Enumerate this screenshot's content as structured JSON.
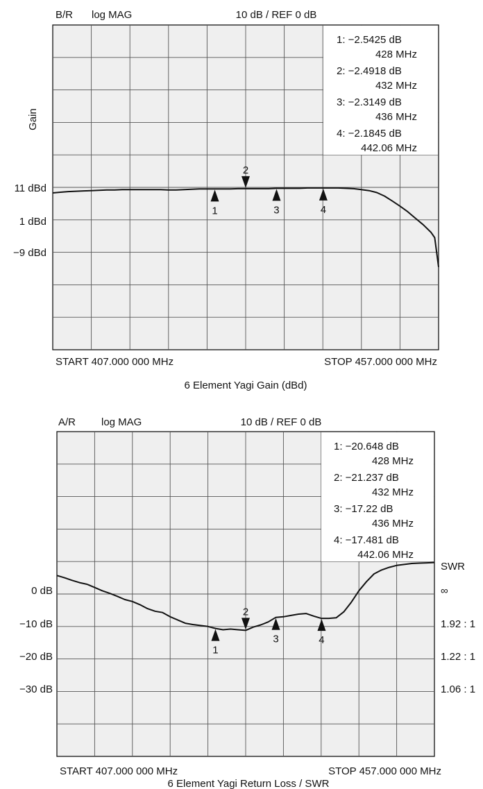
{
  "chart_data": [
    {
      "type": "line",
      "channel": "B/R",
      "format": "log MAG",
      "scale": "10 dB / REF 0 dB",
      "left_ticks": [
        "11 dBd",
        "1 dBd",
        "−9 dBd"
      ],
      "ylabel": "Gain",
      "start_label": "START 407.000 000 MHz",
      "stop_label": "STOP 457.000 000 MHz",
      "caption": "6 Element Yagi Gain (dBd)",
      "xlim": [
        407,
        457
      ],
      "grid": true,
      "x": [
        407,
        408,
        409,
        410,
        411,
        412,
        413,
        414,
        415,
        416,
        417,
        418,
        419,
        420,
        421,
        422,
        423,
        424,
        425,
        426,
        427,
        428,
        429,
        430,
        431,
        432,
        433,
        434,
        435,
        436,
        437,
        438,
        439,
        440,
        441,
        442,
        443,
        444,
        445,
        446,
        447,
        448,
        449,
        450,
        451,
        452,
        453,
        454,
        455,
        456,
        456.5,
        457
      ],
      "y": [
        9.3,
        9.5,
        9.7,
        9.8,
        9.9,
        10.0,
        10.1,
        10.2,
        10.2,
        10.3,
        10.3,
        10.3,
        10.3,
        10.3,
        10.3,
        10.2,
        10.2,
        10.3,
        10.4,
        10.5,
        10.5,
        10.5,
        10.5,
        10.5,
        10.6,
        10.6,
        10.6,
        10.6,
        10.6,
        10.7,
        10.7,
        10.7,
        10.7,
        10.8,
        10.8,
        10.8,
        10.8,
        10.8,
        10.7,
        10.6,
        10.3,
        10.0,
        9.4,
        8.3,
        6.8,
        5.2,
        3.5,
        1.5,
        -0.5,
        -2.8,
        -4.5,
        -13.5
      ],
      "markers": [
        {
          "id": "1",
          "readout": "−2.5425 dB",
          "freq": "428 MHz",
          "x": 428,
          "dir": "up"
        },
        {
          "id": "2",
          "readout": "−2.4918 dB",
          "freq": "432 MHz",
          "x": 432,
          "dir": "down"
        },
        {
          "id": "3",
          "readout": "−2.3149 dB",
          "freq": "436 MHz",
          "x": 436,
          "dir": "up"
        },
        {
          "id": "4",
          "readout": "−2.1845 dB",
          "freq": "442.06 MHz",
          "x": 442.06,
          "dir": "up"
        }
      ]
    },
    {
      "type": "line",
      "channel": "A/R",
      "format": "log MAG",
      "scale": "10 dB / REF 0 dB",
      "left_ticks": [
        "0 dB",
        "−10 dB",
        "−20 dB",
        "−30 dB"
      ],
      "right_title": "SWR",
      "right_ticks": [
        "∞",
        "1.92 : 1",
        "1.22 : 1",
        "1.06 : 1"
      ],
      "start_label": "START 407.000 000 MHz",
      "stop_label": "STOP 457.000 000 MHz",
      "caption": "6 Element Yagi Return Loss / SWR",
      "xlim": [
        407,
        457
      ],
      "ylim": [
        -60,
        40
      ],
      "grid": true,
      "x": [
        407,
        408,
        409,
        410,
        411,
        412,
        413,
        414,
        415,
        416,
        417,
        418,
        419,
        420,
        421,
        422,
        423,
        424,
        425,
        426,
        427,
        428,
        429,
        430,
        431,
        432,
        433,
        434,
        435,
        436,
        437,
        438,
        439,
        440,
        441,
        442,
        443,
        444,
        445,
        446,
        447,
        448,
        449,
        450,
        451,
        452,
        453,
        454,
        455,
        456,
        457
      ],
      "y": [
        -4.3,
        -5.0,
        -5.8,
        -6.5,
        -7.0,
        -8.0,
        -9.0,
        -9.8,
        -10.7,
        -11.7,
        -12.3,
        -13.3,
        -14.5,
        -15.3,
        -15.7,
        -17.0,
        -18.0,
        -19.0,
        -19.4,
        -19.7,
        -20.0,
        -20.6,
        -21.0,
        -20.8,
        -21.0,
        -21.2,
        -20.2,
        -19.5,
        -18.6,
        -17.2,
        -17.0,
        -16.6,
        -16.2,
        -16.0,
        -16.8,
        -17.5,
        -17.5,
        -17.3,
        -15.5,
        -12.5,
        -9.0,
        -6.2,
        -3.8,
        -2.6,
        -1.8,
        -1.2,
        -0.9,
        -0.6,
        -0.5,
        -0.4,
        -0.3
      ],
      "markers": [
        {
          "id": "1",
          "readout": "−20.648 dB",
          "freq": "428 MHz",
          "x": 428,
          "dir": "up"
        },
        {
          "id": "2",
          "readout": "−21.237 dB",
          "freq": "432 MHz",
          "x": 432,
          "dir": "down"
        },
        {
          "id": "3",
          "readout": "−17.22 dB",
          "freq": "436 MHz",
          "x": 436,
          "dir": "up"
        },
        {
          "id": "4",
          "readout": "−17.481 dB",
          "freq": "442.06 MHz",
          "x": 442.06,
          "dir": "up"
        }
      ]
    }
  ]
}
